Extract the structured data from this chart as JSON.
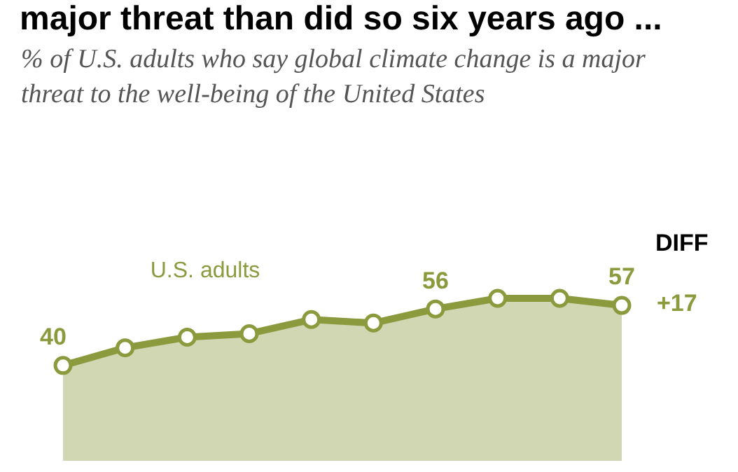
{
  "chart_data": {
    "type": "area",
    "title": "major threat than did so six years ago ...",
    "subtitle": "% of U.S. adults who say global climate change is a major threat to the well-being of the United States",
    "categories": [
      null,
      null,
      null,
      null,
      null,
      null,
      null,
      null,
      null,
      null
    ],
    "series": [
      {
        "name": "U.S. adults",
        "color": "#8c9a3e",
        "values": [
          40,
          45,
          48,
          49,
          53,
          52,
          56,
          59,
          59,
          57
        ],
        "value_labels": [
          "40",
          null,
          null,
          null,
          null,
          null,
          "56",
          null,
          null,
          "57"
        ]
      }
    ],
    "tick_labels": false,
    "legend": false,
    "marker": "circle",
    "annotations": [
      "DIFF",
      "+17"
    ]
  }
}
